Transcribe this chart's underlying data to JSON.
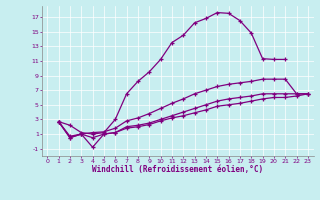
{
  "xlabel": "Windchill (Refroidissement éolien,°C)",
  "background_color": "#c8eef0",
  "line_color": "#800080",
  "grid_color": "#aadddd",
  "xlim": [
    -0.5,
    23.5
  ],
  "ylim": [
    -2.0,
    18.5
  ],
  "yticks": [
    -1,
    1,
    3,
    5,
    7,
    9,
    11,
    13,
    15,
    17
  ],
  "xticks": [
    0,
    1,
    2,
    3,
    4,
    5,
    6,
    7,
    8,
    9,
    10,
    11,
    12,
    13,
    14,
    15,
    16,
    17,
    18,
    19,
    20,
    21,
    22,
    23
  ],
  "curves": [
    {
      "x": [
        1,
        2,
        3,
        4,
        5,
        6,
        7,
        8,
        9,
        10,
        11,
        12,
        13,
        14,
        15,
        16,
        17,
        18,
        19,
        20,
        21
      ],
      "y": [
        2.7,
        2.2,
        1.2,
        1.0,
        1.2,
        3.0,
        6.5,
        8.2,
        9.5,
        11.2,
        13.5,
        14.5,
        16.2,
        16.8,
        17.6,
        17.5,
        16.5,
        14.8,
        11.3,
        11.2,
        11.2
      ]
    },
    {
      "x": [
        1,
        2,
        3,
        4,
        5,
        6,
        7,
        8,
        9,
        10,
        11,
        12,
        13,
        14,
        15,
        16,
        17,
        18,
        19,
        20,
        21,
        22,
        23
      ],
      "y": [
        2.7,
        0.7,
        1.0,
        1.2,
        1.3,
        1.8,
        2.8,
        3.2,
        3.8,
        4.5,
        5.2,
        5.8,
        6.5,
        7.0,
        7.5,
        7.8,
        8.0,
        8.2,
        8.5,
        8.5,
        8.5,
        6.5,
        6.5
      ]
    },
    {
      "x": [
        1,
        2,
        3,
        4,
        5,
        6,
        7,
        8,
        9,
        10,
        11,
        12,
        13,
        14,
        15,
        16,
        17,
        18,
        19,
        20,
        21,
        22,
        23
      ],
      "y": [
        2.7,
        0.5,
        1.0,
        -0.8,
        1.0,
        1.2,
        2.0,
        2.2,
        2.5,
        3.0,
        3.5,
        4.0,
        4.5,
        5.0,
        5.5,
        5.8,
        6.0,
        6.2,
        6.5,
        6.5,
        6.5,
        6.5,
        6.5
      ]
    },
    {
      "x": [
        1,
        2,
        3,
        4,
        5,
        6,
        7,
        8,
        9,
        10,
        11,
        12,
        13,
        14,
        15,
        16,
        17,
        18,
        19,
        20,
        21,
        22,
        23
      ],
      "y": [
        2.7,
        0.5,
        1.0,
        0.5,
        1.0,
        1.2,
        1.8,
        2.0,
        2.3,
        2.8,
        3.2,
        3.5,
        3.9,
        4.3,
        4.8,
        5.0,
        5.2,
        5.5,
        5.8,
        6.0,
        6.0,
        6.2,
        6.5
      ]
    }
  ]
}
